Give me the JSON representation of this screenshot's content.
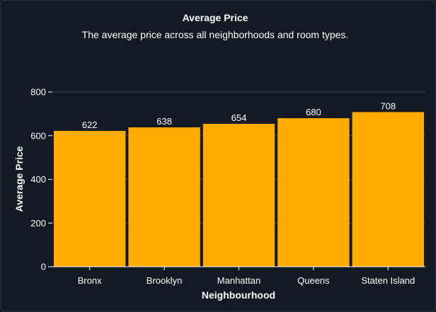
{
  "chart_data": {
    "type": "bar",
    "title": "Average Price",
    "subtitle": "The average price across all neighborhoods and room types.",
    "xlabel": "Neighbourhood",
    "ylabel": "Average Price",
    "categories": [
      "Bronx",
      "Brooklyn",
      "Manhattan",
      "Queens",
      "Staten Island"
    ],
    "values": [
      622,
      638,
      654,
      680,
      708
    ],
    "ylim": [
      0,
      800
    ],
    "yticks": [
      0,
      200,
      400,
      600,
      800
    ],
    "grid": true,
    "bar_color": "#ffab00",
    "background_color": "#131a24"
  }
}
